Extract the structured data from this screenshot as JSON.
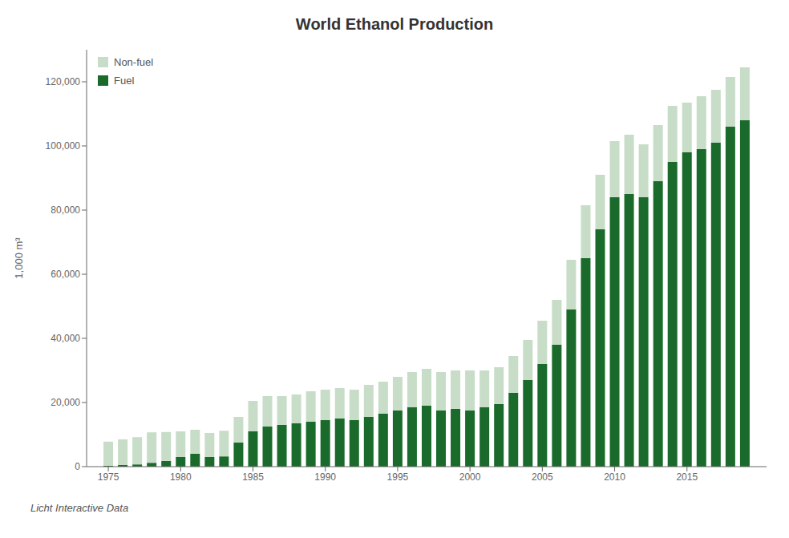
{
  "chart_data": {
    "type": "bar",
    "title": "World Ethanol Production",
    "ylabel": "1,000 m³",
    "source": "Licht Interactive Data",
    "x": [
      1975,
      1976,
      1977,
      1978,
      1979,
      1980,
      1981,
      1982,
      1983,
      1984,
      1985,
      1986,
      1987,
      1988,
      1989,
      1990,
      1991,
      1992,
      1993,
      1994,
      1995,
      1996,
      1997,
      1998,
      1999,
      2000,
      2001,
      2002,
      2003,
      2004,
      2005,
      2006,
      2007,
      2008,
      2009,
      2010,
      2011,
      2012,
      2013,
      2014,
      2015,
      2016,
      2017,
      2018,
      2019
    ],
    "series": [
      {
        "name": "Fuel",
        "color": "#1a6b2b",
        "values": [
          300,
          500,
          700,
          1200,
          1800,
          3000,
          4000,
          3000,
          3200,
          7500,
          11000,
          12500,
          13000,
          13500,
          14000,
          14500,
          15000,
          14500,
          15500,
          16500,
          17500,
          18500,
          19000,
          17500,
          18000,
          17500,
          18500,
          19500,
          23000,
          27000,
          32000,
          38000,
          49000,
          65000,
          74000,
          84000,
          85000,
          84000,
          89000,
          95000,
          98000,
          99000,
          101000,
          106000,
          108000
        ]
      },
      {
        "name": "Non-fuel",
        "color": "#c8ddc8",
        "values": [
          7500,
          8000,
          8500,
          9500,
          9000,
          8000,
          7500,
          7500,
          8000,
          8000,
          9500,
          9500,
          9000,
          9000,
          9500,
          9500,
          9500,
          9500,
          10000,
          10000,
          10500,
          11000,
          11500,
          12000,
          12000,
          12500,
          11500,
          11500,
          11500,
          12500,
          13500,
          14000,
          15500,
          16500,
          17000,
          17500,
          18500,
          16500,
          17500,
          17500,
          15500,
          16500,
          16500,
          15500,
          16500
        ]
      }
    ],
    "stacked": true,
    "xlim": [
      1973.5,
      2020.5
    ],
    "xticks": [
      1975,
      1980,
      1985,
      1990,
      1995,
      2000,
      2005,
      2010,
      2015
    ],
    "ylim": [
      0,
      130000
    ],
    "yticks": [
      0,
      {
        "value": 20000,
        "label": "20,000"
      },
      {
        "value": 40000,
        "label": "40,000"
      },
      {
        "value": 60000,
        "label": "60,000"
      },
      {
        "value": 80000,
        "label": "80,000"
      },
      {
        "value": 100000,
        "label": "100,000"
      },
      {
        "value": 120000,
        "label": "120,000"
      }
    ],
    "grid": false,
    "legend": "upper left"
  }
}
